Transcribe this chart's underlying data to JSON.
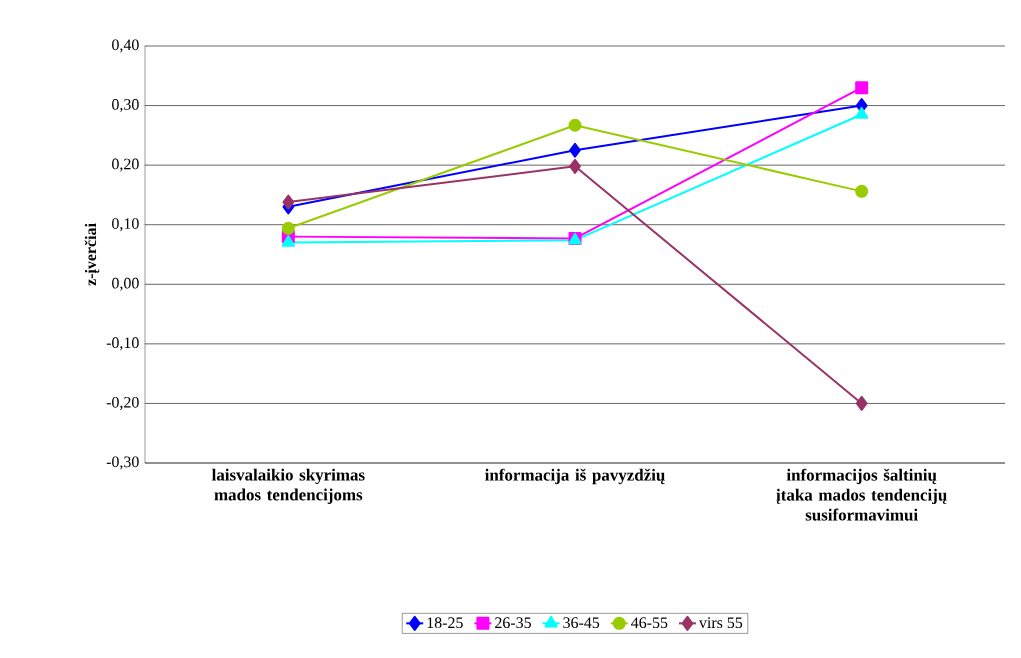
{
  "chart_data": {
    "type": "line",
    "ylabel": "z-įverčiai",
    "categories": [
      "laisvalaikio skyrimas mados tendencijoms",
      "informacija iš pavyzdžių",
      "informacijos šaltinių įtaka mados tendencijų susiformavimui"
    ],
    "series": [
      {
        "name": "18-25",
        "color": "#0000ff",
        "marker": "diamond",
        "values": [
          0.13,
          0.225,
          0.3
        ]
      },
      {
        "name": "26-35",
        "color": "#ff00ff",
        "marker": "square",
        "values": [
          0.08,
          0.077,
          0.33
        ]
      },
      {
        "name": "36-45",
        "color": "#00ffff",
        "marker": "triangle",
        "values": [
          0.07,
          0.074,
          0.285
        ]
      },
      {
        "name": "46-55",
        "color": "#99cc00",
        "marker": "circle",
        "values": [
          0.094,
          0.267,
          0.156
        ]
      },
      {
        "name": "virs 55",
        "color": "#993366",
        "marker": "diamond",
        "values": [
          0.138,
          0.198,
          -0.2
        ]
      }
    ],
    "ylim": [
      -0.3,
      0.4
    ],
    "yticks": [
      {
        "value": -0.3,
        "label": "-0,30"
      },
      {
        "value": -0.2,
        "label": "-0,20"
      },
      {
        "value": -0.1,
        "label": "-0,10"
      },
      {
        "value": 0,
        "label": "0,00"
      },
      {
        "value": 0.1,
        "label": "0,10"
      },
      {
        "value": 0.2,
        "label": "0,20"
      },
      {
        "value": 0.3,
        "label": "0,30"
      },
      {
        "value": 0.4,
        "label": "0,40"
      }
    ],
    "grid": "y",
    "legend": "bottom",
    "line_style": "solid"
  }
}
